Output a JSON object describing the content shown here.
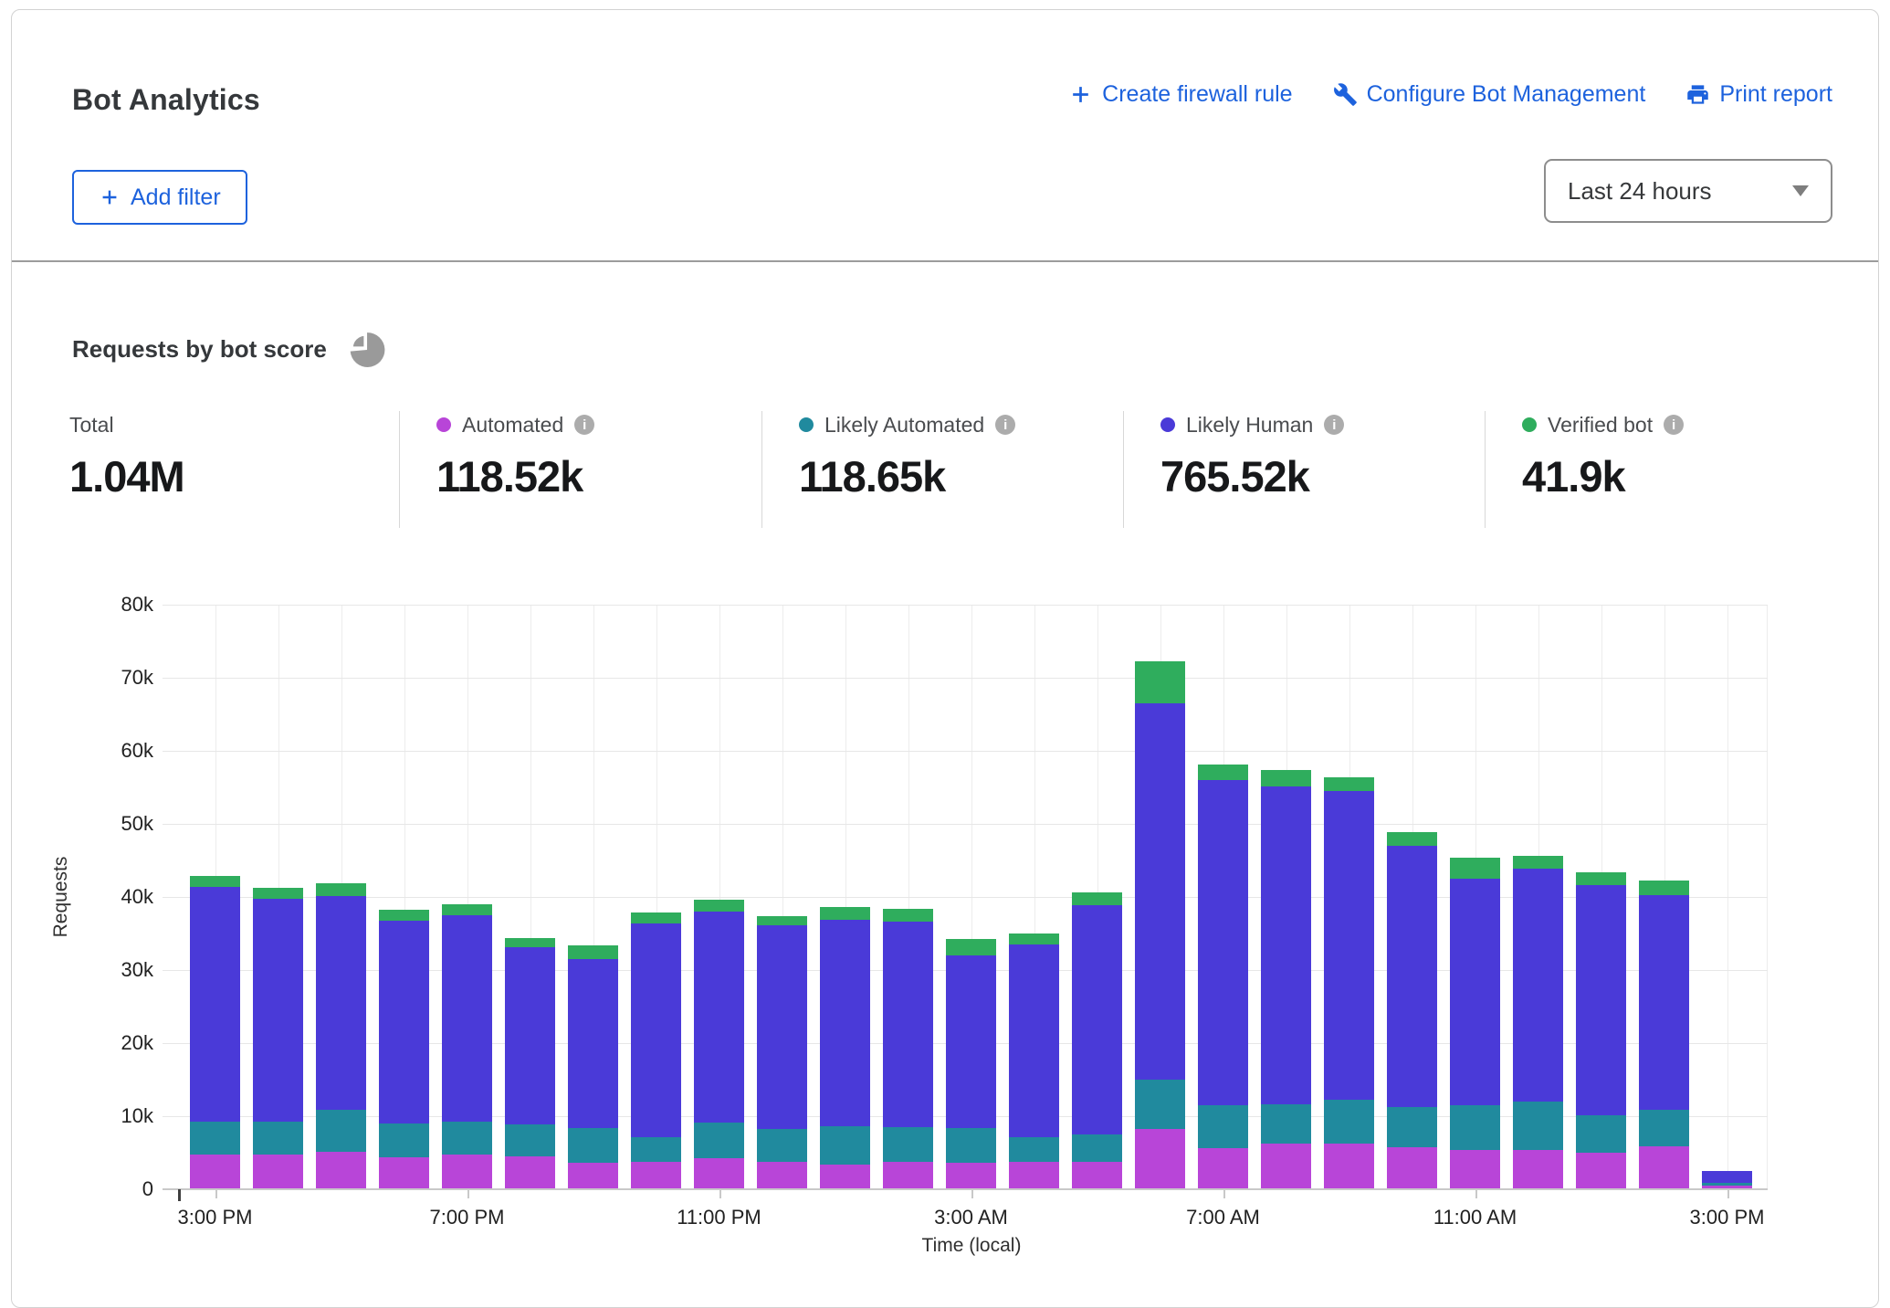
{
  "header": {
    "title": "Bot Analytics",
    "actions": [
      {
        "label": "Create firewall rule",
        "icon": "plus-icon"
      },
      {
        "label": "Configure Bot Management",
        "icon": "wrench-icon"
      },
      {
        "label": "Print report",
        "icon": "printer-icon"
      }
    ],
    "add_filter": {
      "label": "Add filter"
    },
    "time_range": {
      "value": "Last 24 hours"
    }
  },
  "section": {
    "title": "Requests by bot score"
  },
  "stats": [
    {
      "label": "Total",
      "value": "1.04M",
      "color": null,
      "info": false
    },
    {
      "label": "Automated",
      "value": "118.52k",
      "color": "#b845d8",
      "info": true
    },
    {
      "label": "Likely Automated",
      "value": "118.65k",
      "color": "#208a9e",
      "info": true
    },
    {
      "label": "Likely Human",
      "value": "765.52k",
      "color": "#4a3ad8",
      "info": true
    },
    {
      "label": "Verified bot",
      "value": "41.9k",
      "color": "#2fad5d",
      "info": true
    }
  ],
  "chart_data": {
    "type": "bar",
    "stacked": true,
    "title": "Requests by bot score",
    "xlabel": "Time (local)",
    "ylabel": "Requests",
    "ylim": [
      0,
      80000
    ],
    "grid": true,
    "y_tick_labels": [
      "0",
      "10k",
      "20k",
      "30k",
      "40k",
      "50k",
      "60k",
      "70k",
      "80k"
    ],
    "x_tick_labels": [
      "3:00 PM",
      "7:00 PM",
      "11:00 PM",
      "3:00 AM",
      "7:00 AM",
      "11:00 AM",
      "3:00 PM"
    ],
    "x_tick_interval": 4,
    "categories": [
      "3:00 PM",
      "4:00 PM",
      "5:00 PM",
      "6:00 PM",
      "7:00 PM",
      "8:00 PM",
      "9:00 PM",
      "10:00 PM",
      "11:00 PM",
      "12:00 AM",
      "1:00 AM",
      "2:00 AM",
      "3:00 AM",
      "4:00 AM",
      "5:00 AM",
      "6:00 AM",
      "7:00 AM",
      "8:00 AM",
      "9:00 AM",
      "10:00 AM",
      "11:00 AM",
      "12:00 PM",
      "1:00 PM",
      "2:00 PM",
      "3:00 PM"
    ],
    "series": [
      {
        "name": "Automated",
        "color": "#b845d8",
        "values": [
          4700,
          4700,
          5100,
          4400,
          4700,
          4500,
          3600,
          3700,
          4300,
          3700,
          3400,
          3800,
          3600,
          3700,
          3700,
          8300,
          5600,
          6300,
          6200,
          5700,
          5400,
          5400,
          5000,
          5900,
          500
        ]
      },
      {
        "name": "Likely Automated",
        "color": "#208a9e",
        "values": [
          4500,
          4500,
          5800,
          4600,
          4500,
          4400,
          4800,
          3400,
          4900,
          4500,
          5200,
          4700,
          4800,
          3400,
          3700,
          6700,
          5900,
          5400,
          6000,
          5500,
          6100,
          6600,
          5100,
          5000,
          400
        ]
      },
      {
        "name": "Likely Human",
        "color": "#4a3ad8",
        "values": [
          32100,
          30500,
          29300,
          27700,
          28300,
          24200,
          23100,
          29200,
          28900,
          27900,
          28200,
          28100,
          23600,
          26400,
          31400,
          51500,
          44500,
          43500,
          42200,
          35800,
          31000,
          31900,
          31500,
          29400,
          1600
        ]
      },
      {
        "name": "Verified bot",
        "color": "#2fad5d",
        "values": [
          1500,
          1500,
          1800,
          1500,
          1500,
          1300,
          1900,
          1500,
          1600,
          1300,
          1700,
          1700,
          2200,
          1500,
          1700,
          5800,
          2100,
          2300,
          1900,
          1900,
          2900,
          1700,
          1700,
          2000,
          0
        ]
      }
    ],
    "legend_position": "top"
  }
}
